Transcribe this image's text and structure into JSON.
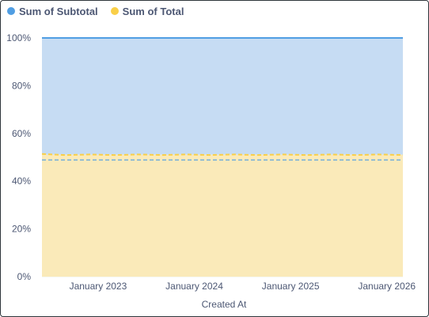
{
  "colors": {
    "subtotal": "#509ee3",
    "total": "#f9cf48",
    "subtotal_fill": "#c6dcf3",
    "total_fill": "#faeab9",
    "grid": "#edf0f3",
    "text": "#4c5773",
    "border": "#2e353b"
  },
  "chart_data": {
    "type": "area",
    "stacked": "normalized",
    "xlabel": "Created At",
    "ylabel": "",
    "ylim": [
      0,
      100
    ],
    "yticks": [
      "0%",
      "20%",
      "40%",
      "60%",
      "80%",
      "100%"
    ],
    "xticks": [
      "January 2023",
      "January 2024",
      "January 2025",
      "January 2026"
    ],
    "grid": true,
    "legend_position": "top-left",
    "x": [
      "2022-06",
      "2022-09",
      "2022-12",
      "2023-03",
      "2023-06",
      "2023-09",
      "2023-12",
      "2024-03",
      "2024-06",
      "2024-09",
      "2024-12",
      "2025-03",
      "2025-06",
      "2025-09",
      "2025-12",
      "2026-03"
    ],
    "series": [
      {
        "name": "Sum of Subtotal",
        "values": [
          48.9,
          48.9,
          48.9,
          48.9,
          48.9,
          48.9,
          48.9,
          48.9,
          48.9,
          48.9,
          48.9,
          48.9,
          48.9,
          48.9,
          48.9,
          48.9
        ]
      },
      {
        "name": "Sum of Total",
        "values": [
          51.1,
          51.1,
          51.1,
          51.1,
          51.1,
          51.1,
          51.1,
          51.1,
          51.1,
          51.1,
          51.1,
          51.1,
          51.1,
          51.1,
          51.1,
          51.1
        ]
      }
    ]
  }
}
